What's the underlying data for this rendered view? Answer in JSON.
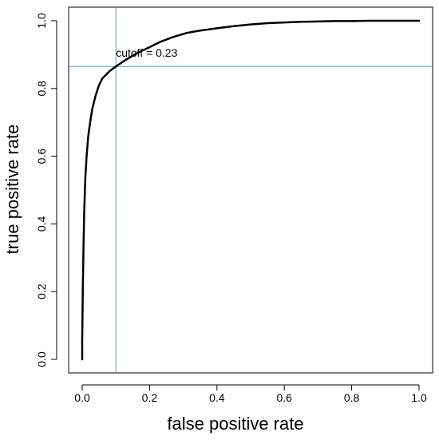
{
  "chart_data": {
    "type": "line",
    "title": "",
    "xlabel": "false positive rate",
    "ylabel": "true positive rate",
    "xlim": [
      0,
      1
    ],
    "ylim": [
      0,
      1
    ],
    "xticks": [
      "0.0",
      "0.2",
      "0.4",
      "0.6",
      "0.8",
      "1.0"
    ],
    "yticks": [
      "0.0",
      "0.2",
      "0.4",
      "0.6",
      "0.8",
      "1.0"
    ],
    "grid": false,
    "legend": "none",
    "series": [
      {
        "line_color": "#000000",
        "x": [
          0.0,
          0.0,
          0.002,
          0.004,
          0.006,
          0.009,
          0.013,
          0.018,
          0.025,
          0.03,
          0.04,
          0.05,
          0.06,
          0.07,
          0.08,
          0.09,
          0.1,
          0.11,
          0.13,
          0.15,
          0.17,
          0.2,
          0.23,
          0.27,
          0.31,
          0.35,
          0.4,
          0.45,
          0.5,
          0.55,
          0.6,
          0.65,
          0.7,
          0.75,
          0.8,
          0.85,
          0.9,
          1.0
        ],
        "y": [
          0.0,
          0.06,
          0.22,
          0.34,
          0.44,
          0.53,
          0.6,
          0.66,
          0.71,
          0.74,
          0.78,
          0.81,
          0.83,
          0.84,
          0.85,
          0.858,
          0.865,
          0.872,
          0.885,
          0.897,
          0.908,
          0.922,
          0.937,
          0.952,
          0.964,
          0.971,
          0.978,
          0.984,
          0.989,
          0.993,
          0.995,
          0.997,
          0.998,
          0.999,
          0.999,
          1.0,
          1.0,
          1.0
        ]
      }
    ],
    "reference_lines": {
      "color": "#5b9bb8",
      "vertical_x": 0.1,
      "horizontal_y": 0.865
    },
    "annotation": {
      "text": "cutoff = 0.23",
      "x": 0.1,
      "y": 0.865
    }
  }
}
